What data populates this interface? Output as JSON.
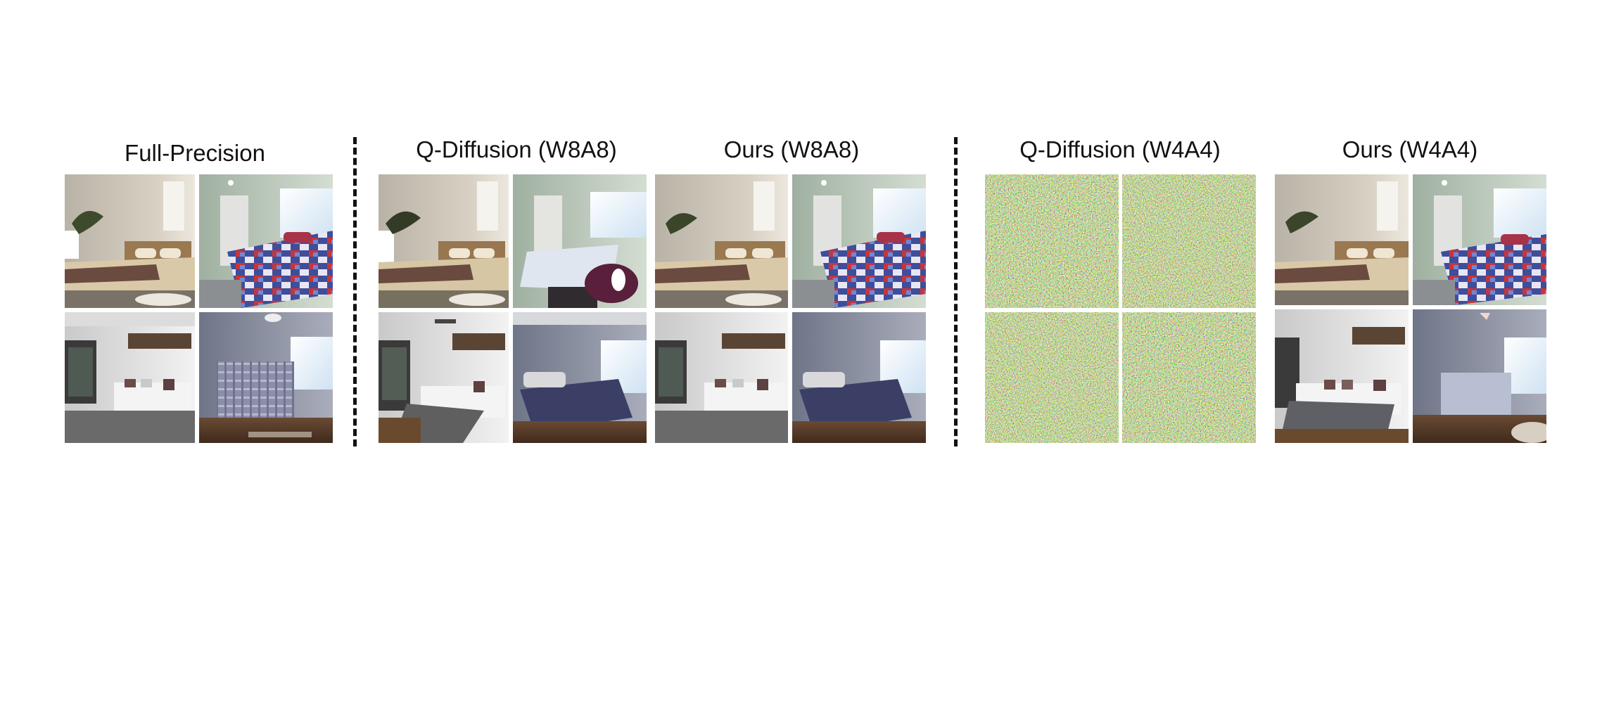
{
  "figure": {
    "groups": [
      {
        "id": "fp",
        "title": "Full-Precision"
      },
      {
        "id": "qd8",
        "title": "Q-Diffusion (W8A8)"
      },
      {
        "id": "ours8",
        "title": "Ours (W8A8)"
      },
      {
        "id": "qd4",
        "title": "Q-Diffusion (W4A4)"
      },
      {
        "id": "ours4",
        "title": "Ours (W4A4)"
      }
    ]
  }
}
